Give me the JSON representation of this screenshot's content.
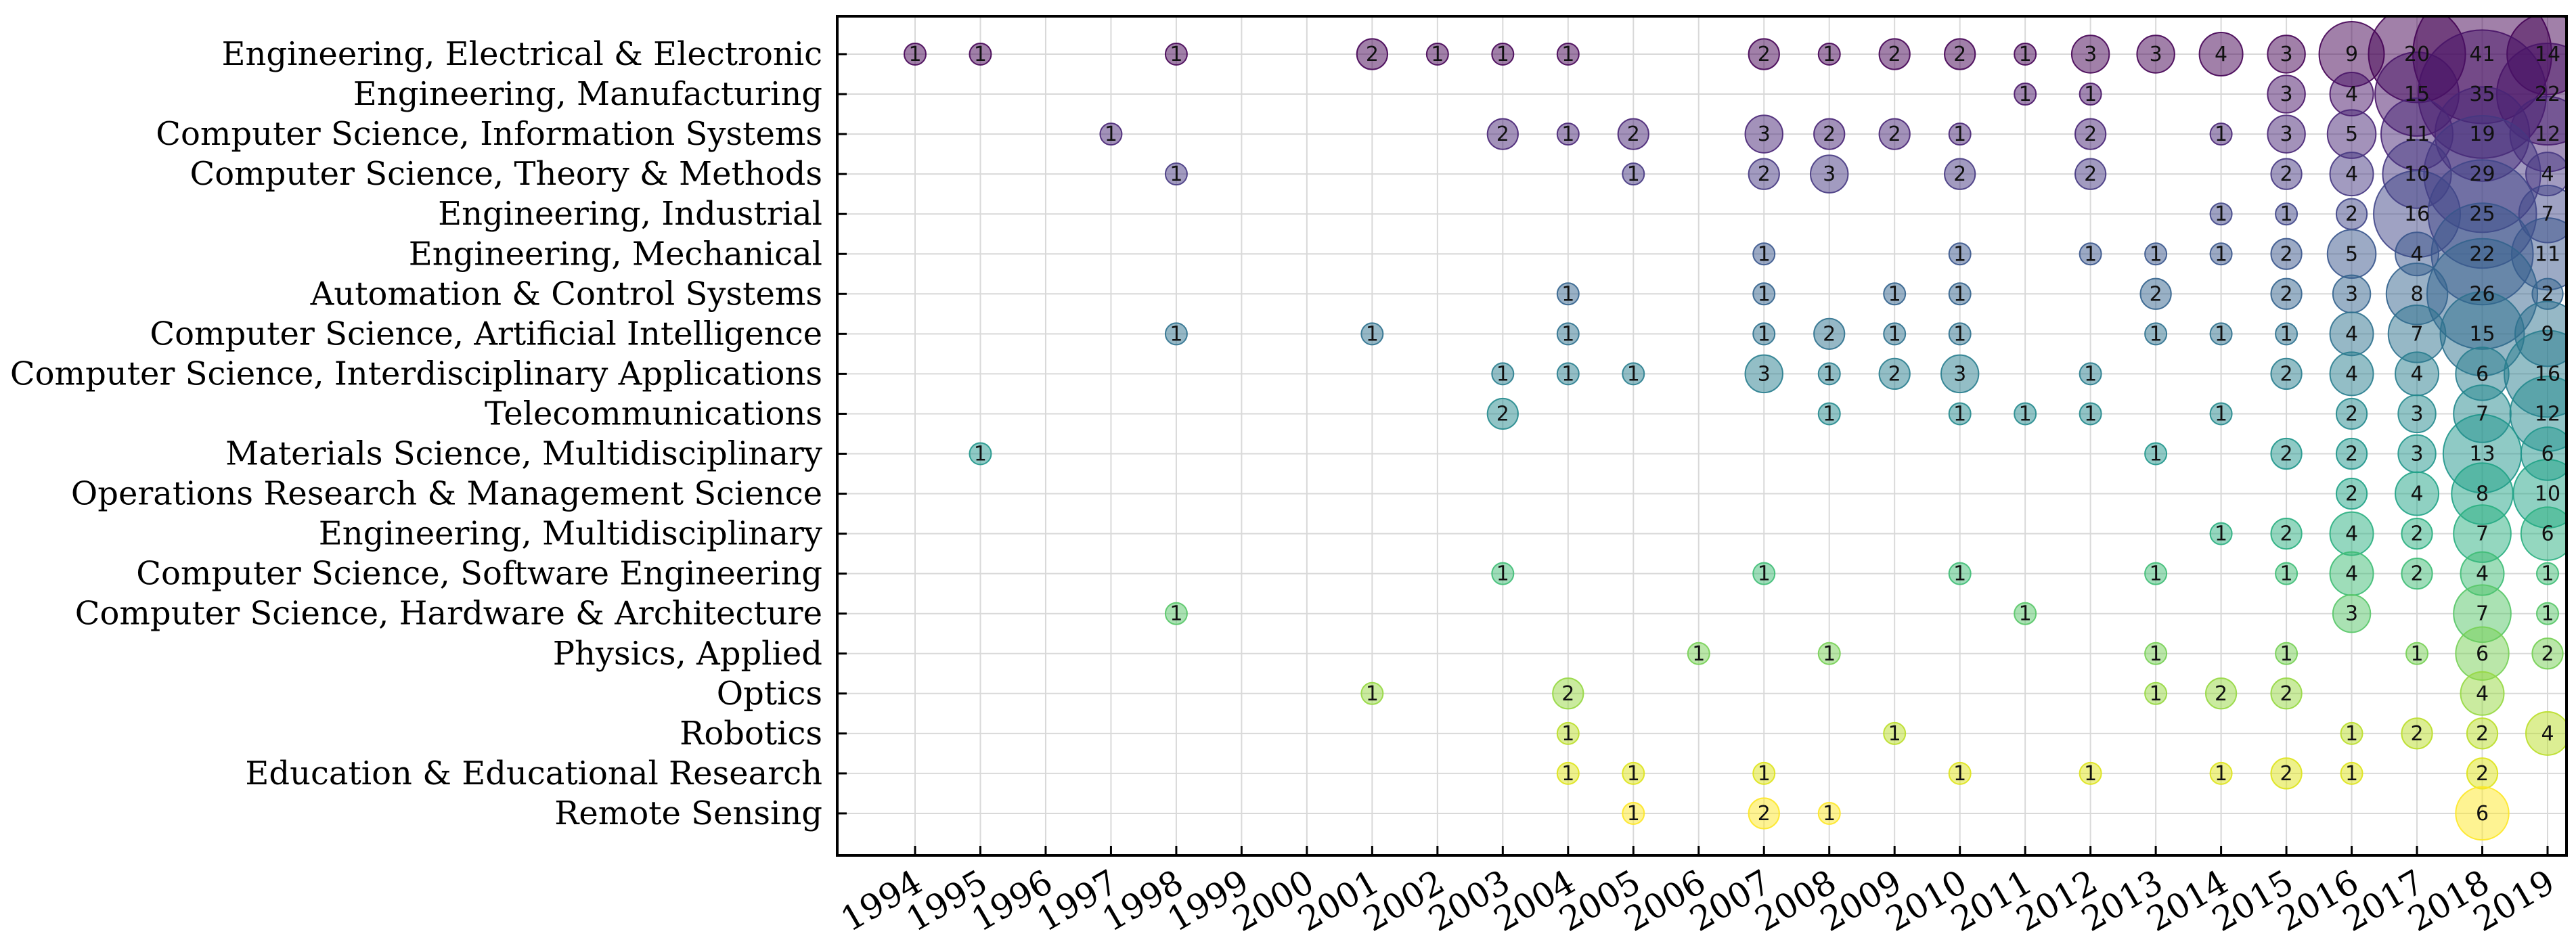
{
  "chart_data": {
    "type": "scatter",
    "title": "",
    "xlabel": "",
    "ylabel": "",
    "grid": true,
    "legend": "none",
    "colormap": "viridis",
    "x": [
      1994,
      1995,
      1996,
      1997,
      1998,
      1999,
      2000,
      2001,
      2002,
      2003,
      2004,
      2005,
      2006,
      2007,
      2008,
      2009,
      2010,
      2011,
      2012,
      2013,
      2014,
      2015,
      2016,
      2017,
      2018,
      2019
    ],
    "categories": [
      "Engineering, Electrical & Electronic",
      "Engineering, Manufacturing",
      "Computer Science, Information Systems",
      "Computer Science, Theory & Methods",
      "Engineering, Industrial",
      "Engineering, Mechanical",
      "Automation & Control Systems",
      "Computer Science, Artificial Intelligence",
      "Computer Science, Interdisciplinary Applications",
      "Telecommunications",
      "Materials Science, Multidisciplinary",
      "Operations Research & Management Science",
      "Engineering, Multidisciplinary",
      "Computer Science, Software Engineering",
      "Computer Science, Hardware & Architecture",
      "Physics, Applied",
      "Optics",
      "Robotics",
      "Education & Educational Research",
      "Remote Sensing"
    ],
    "series": [
      {
        "category": "Engineering, Electrical & Electronic",
        "points": [
          [
            1994,
            1
          ],
          [
            1995,
            1
          ],
          [
            1998,
            1
          ],
          [
            2001,
            2
          ],
          [
            2002,
            1
          ],
          [
            2003,
            1
          ],
          [
            2004,
            1
          ],
          [
            2007,
            2
          ],
          [
            2008,
            1
          ],
          [
            2009,
            2
          ],
          [
            2010,
            2
          ],
          [
            2011,
            1
          ],
          [
            2012,
            3
          ],
          [
            2013,
            3
          ],
          [
            2014,
            4
          ],
          [
            2015,
            3
          ],
          [
            2016,
            9
          ],
          [
            2017,
            20
          ],
          [
            2018,
            41
          ],
          [
            2019,
            14
          ]
        ]
      },
      {
        "category": "Engineering, Manufacturing",
        "points": [
          [
            2011,
            1
          ],
          [
            2012,
            1
          ],
          [
            2015,
            3
          ],
          [
            2016,
            4
          ],
          [
            2017,
            15
          ],
          [
            2018,
            35
          ],
          [
            2019,
            22
          ]
        ]
      },
      {
        "category": "Computer Science, Information Systems",
        "points": [
          [
            1997,
            1
          ],
          [
            2003,
            2
          ],
          [
            2004,
            1
          ],
          [
            2005,
            2
          ],
          [
            2007,
            3
          ],
          [
            2008,
            2
          ],
          [
            2009,
            2
          ],
          [
            2010,
            1
          ],
          [
            2012,
            2
          ],
          [
            2014,
            1
          ],
          [
            2015,
            3
          ],
          [
            2016,
            5
          ],
          [
            2017,
            11
          ],
          [
            2018,
            19
          ],
          [
            2019,
            12
          ]
        ]
      },
      {
        "category": "Computer Science, Theory & Methods",
        "points": [
          [
            1998,
            1
          ],
          [
            2005,
            1
          ],
          [
            2007,
            2
          ],
          [
            2008,
            3
          ],
          [
            2010,
            2
          ],
          [
            2012,
            2
          ],
          [
            2015,
            2
          ],
          [
            2016,
            4
          ],
          [
            2017,
            10
          ],
          [
            2018,
            29
          ],
          [
            2019,
            4
          ]
        ]
      },
      {
        "category": "Engineering, Industrial",
        "points": [
          [
            2014,
            1
          ],
          [
            2015,
            1
          ],
          [
            2016,
            2
          ],
          [
            2017,
            16
          ],
          [
            2018,
            25
          ],
          [
            2019,
            7
          ]
        ]
      },
      {
        "category": "Engineering, Mechanical",
        "points": [
          [
            2007,
            1
          ],
          [
            2010,
            1
          ],
          [
            2012,
            1
          ],
          [
            2013,
            1
          ],
          [
            2014,
            1
          ],
          [
            2015,
            2
          ],
          [
            2016,
            5
          ],
          [
            2017,
            4
          ],
          [
            2018,
            22
          ],
          [
            2019,
            11
          ]
        ]
      },
      {
        "category": "Automation & Control Systems",
        "points": [
          [
            2004,
            1
          ],
          [
            2007,
            1
          ],
          [
            2009,
            1
          ],
          [
            2010,
            1
          ],
          [
            2013,
            2
          ],
          [
            2015,
            2
          ],
          [
            2016,
            3
          ],
          [
            2017,
            8
          ],
          [
            2018,
            26
          ],
          [
            2019,
            2
          ]
        ]
      },
      {
        "category": "Computer Science, Artificial Intelligence",
        "points": [
          [
            1998,
            1
          ],
          [
            2001,
            1
          ],
          [
            2004,
            1
          ],
          [
            2007,
            1
          ],
          [
            2008,
            2
          ],
          [
            2009,
            1
          ],
          [
            2010,
            1
          ],
          [
            2013,
            1
          ],
          [
            2014,
            1
          ],
          [
            2015,
            1
          ],
          [
            2016,
            4
          ],
          [
            2017,
            7
          ],
          [
            2018,
            15
          ],
          [
            2019,
            9
          ]
        ]
      },
      {
        "category": "Computer Science, Interdisciplinary Applications",
        "points": [
          [
            2003,
            1
          ],
          [
            2004,
            1
          ],
          [
            2005,
            1
          ],
          [
            2007,
            3
          ],
          [
            2008,
            1
          ],
          [
            2009,
            2
          ],
          [
            2010,
            3
          ],
          [
            2012,
            1
          ],
          [
            2015,
            2
          ],
          [
            2016,
            4
          ],
          [
            2017,
            4
          ],
          [
            2018,
            6
          ],
          [
            2019,
            16
          ]
        ]
      },
      {
        "category": "Telecommunications",
        "points": [
          [
            2003,
            2
          ],
          [
            2008,
            1
          ],
          [
            2010,
            1
          ],
          [
            2011,
            1
          ],
          [
            2012,
            1
          ],
          [
            2014,
            1
          ],
          [
            2016,
            2
          ],
          [
            2017,
            3
          ],
          [
            2018,
            7
          ],
          [
            2019,
            12
          ]
        ]
      },
      {
        "category": "Materials Science, Multidisciplinary",
        "points": [
          [
            1995,
            1
          ],
          [
            2013,
            1
          ],
          [
            2015,
            2
          ],
          [
            2016,
            2
          ],
          [
            2017,
            3
          ],
          [
            2018,
            13
          ],
          [
            2019,
            6
          ]
        ]
      },
      {
        "category": "Operations Research & Management Science",
        "points": [
          [
            2016,
            2
          ],
          [
            2017,
            4
          ],
          [
            2018,
            8
          ],
          [
            2019,
            10
          ]
        ]
      },
      {
        "category": "Engineering, Multidisciplinary",
        "points": [
          [
            2014,
            1
          ],
          [
            2015,
            2
          ],
          [
            2016,
            4
          ],
          [
            2017,
            2
          ],
          [
            2018,
            7
          ],
          [
            2019,
            6
          ]
        ]
      },
      {
        "category": "Computer Science, Software Engineering",
        "points": [
          [
            2003,
            1
          ],
          [
            2007,
            1
          ],
          [
            2010,
            1
          ],
          [
            2013,
            1
          ],
          [
            2015,
            1
          ],
          [
            2016,
            4
          ],
          [
            2017,
            2
          ],
          [
            2018,
            4
          ],
          [
            2019,
            1
          ]
        ]
      },
      {
        "category": "Computer Science, Hardware & Architecture",
        "points": [
          [
            1998,
            1
          ],
          [
            2011,
            1
          ],
          [
            2016,
            3
          ],
          [
            2018,
            7
          ],
          [
            2019,
            1
          ]
        ]
      },
      {
        "category": "Physics, Applied",
        "points": [
          [
            2006,
            1
          ],
          [
            2008,
            1
          ],
          [
            2013,
            1
          ],
          [
            2015,
            1
          ],
          [
            2017,
            1
          ],
          [
            2018,
            6
          ],
          [
            2019,
            2
          ]
        ]
      },
      {
        "category": "Optics",
        "points": [
          [
            2001,
            1
          ],
          [
            2004,
            2
          ],
          [
            2013,
            1
          ],
          [
            2014,
            2
          ],
          [
            2015,
            2
          ],
          [
            2018,
            4
          ]
        ]
      },
      {
        "category": "Robotics",
        "points": [
          [
            2004,
            1
          ],
          [
            2009,
            1
          ],
          [
            2016,
            1
          ],
          [
            2017,
            2
          ],
          [
            2018,
            2
          ],
          [
            2019,
            4
          ]
        ]
      },
      {
        "category": "Education & Educational Research",
        "points": [
          [
            2004,
            1
          ],
          [
            2005,
            1
          ],
          [
            2007,
            1
          ],
          [
            2010,
            1
          ],
          [
            2012,
            1
          ],
          [
            2014,
            1
          ],
          [
            2015,
            2
          ],
          [
            2016,
            1
          ],
          [
            2018,
            2
          ]
        ]
      },
      {
        "category": "Remote Sensing",
        "points": [
          [
            2005,
            1
          ],
          [
            2007,
            2
          ],
          [
            2008,
            1
          ],
          [
            2018,
            6
          ]
        ]
      }
    ],
    "colors": {
      "palette": [
        "#440154",
        "#481467",
        "#482576",
        "#453781",
        "#404688",
        "#39558c",
        "#33638d",
        "#2d718e",
        "#287d8e",
        "#238a8d",
        "#1f968b",
        "#20a386",
        "#29af7f",
        "#3dbc74",
        "#56c667",
        "#75d054",
        "#95d840",
        "#bade28",
        "#dde318",
        "#fde725"
      ],
      "border": "#000000",
      "grid": "#d9d9d9"
    }
  }
}
